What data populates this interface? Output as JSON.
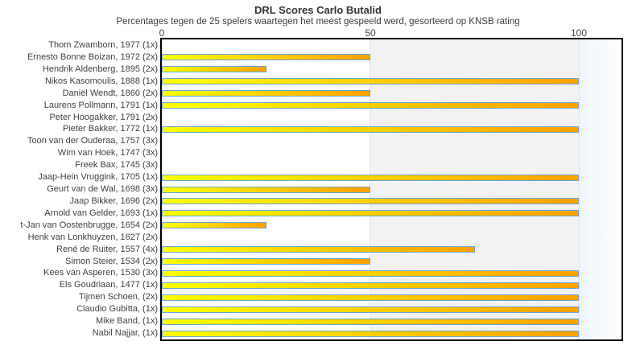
{
  "title": "DRL Scores Carlo Butalid",
  "subtitle": "Percentages tegen de 25 spelers waartegen het meest gespeeld werd, gesorteerd op KNSB rating",
  "chart_data": {
    "type": "bar",
    "orientation": "horizontal",
    "title": "DRL Scores Carlo Butalid",
    "subtitle": "Percentages tegen de 25 spelers waartegen het meest gespeeld werd, gesorteerd op KNSB rating",
    "xlabel": "",
    "ylabel": "",
    "xlim": [
      0,
      110
    ],
    "xticks": [
      0,
      50,
      100
    ],
    "grid": "vertical-bands",
    "legend": "none",
    "categories": [
      "Thom Zwamborn, 1977 (1x)",
      "Ernesto Bonne Boizan, 1972 (2x)",
      "Hendrik Aldenberg, 1895 (2x)",
      "Nikos Kasomoulis, 1888 (1x)",
      "Daniël Wendt, 1860 (2x)",
      "Laurens Pollmann, 1791 (1x)",
      "Peter Hoogakker, 1791 (2x)",
      "Pieter Bakker, 1772 (1x)",
      "Toon van der Ouderaa, 1757 (3x)",
      "Wim van Hoek, 1747 (3x)",
      "Freek Bax, 1745 (3x)",
      "Jaap-Hein Vruggink, 1705 (1x)",
      "Geurt van de Wal, 1698 (3x)",
      "Jaap Bikker, 1696 (2x)",
      "Arnold van Gelder, 1693 (1x)",
      "t-Jan van Oostenbrugge, 1654 (2x)",
      "Henk van Lonkhuyzen, 1627 (2x)",
      "René de Ruiter, 1557 (4x)",
      "Simon Steier, 1534 (2x)",
      "Kees van Asperen, 1530 (3x)",
      "Els Goudriaan, 1477 (1x)",
      "Tijmen Schoen, (2x)",
      "Claudio Gubitta, (1x)",
      "Mike Band, (1x)",
      "Nabil Najjar, (1x)"
    ],
    "values": [
      0,
      50,
      25,
      100,
      50,
      100,
      0,
      100,
      0,
      0,
      0,
      100,
      50,
      100,
      100,
      25,
      0,
      75,
      50,
      100,
      100,
      100,
      100,
      100,
      100
    ],
    "colors": {
      "bar_gradient_start": "#ffff00",
      "bar_gradient_end": "#ffa000",
      "bar_border": "#6aa5d8",
      "band_mid": "#f2f2f2",
      "band_beyond_100": "#edf5fb",
      "plot_border": "#000000",
      "text": "#3f3f3f"
    }
  }
}
